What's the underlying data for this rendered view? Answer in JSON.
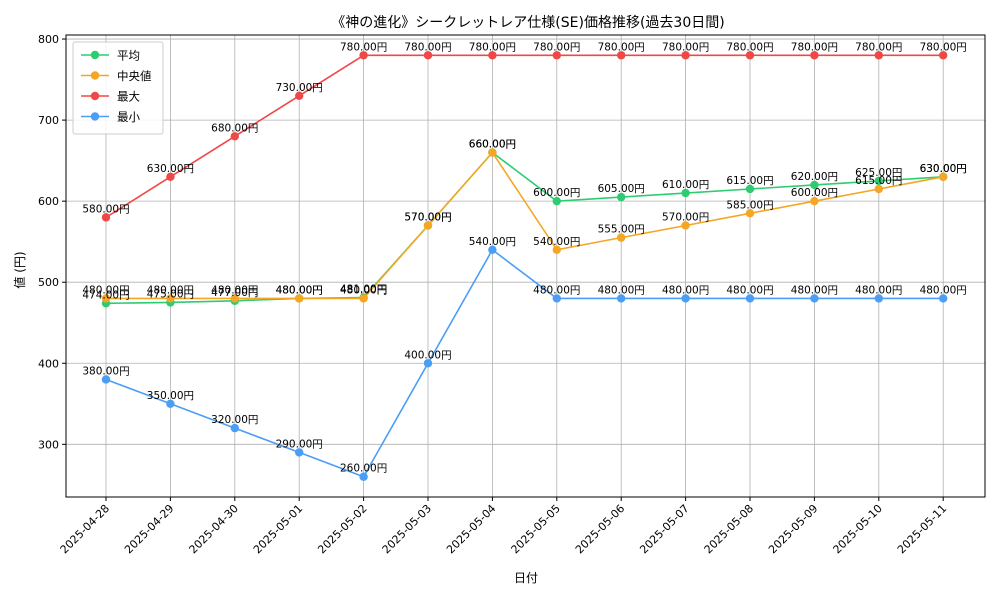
{
  "chart_data": {
    "type": "line",
    "title": "《神の進化》シークレットレア仕様(SE)価格推移(過去30日間)",
    "xlabel": "日付",
    "ylabel": "値 (円)",
    "ylim": [
      235,
      805
    ],
    "yticks": [
      300,
      400,
      500,
      600,
      700,
      800
    ],
    "grid": true,
    "legend_position": "top-left",
    "label_suffix": "円",
    "categories": [
      "2025-04-28",
      "2025-04-29",
      "2025-04-30",
      "2025-05-01",
      "2025-05-02",
      "2025-05-03",
      "2025-05-04",
      "2025-05-05",
      "2025-05-06",
      "2025-05-07",
      "2025-05-08",
      "2025-05-09",
      "2025-05-10",
      "2025-05-11"
    ],
    "series": [
      {
        "name": "平均",
        "color": "#2ecc71",
        "values": [
          474.0,
          475.0,
          477.0,
          480.0,
          481.0,
          570.0,
          660.0,
          600.0,
          605.0,
          610.0,
          615.0,
          620.0,
          625.0,
          630.0
        ]
      },
      {
        "name": "中央値",
        "color": "#f5a623",
        "values": [
          480.0,
          480.0,
          480.0,
          480.0,
          480.0,
          570.0,
          660.0,
          540.0,
          555.0,
          570.0,
          585.0,
          600.0,
          615.0,
          630.0
        ]
      },
      {
        "name": "最大",
        "color": "#f04747",
        "values": [
          580.0,
          630.0,
          680.0,
          730.0,
          780.0,
          780.0,
          780.0,
          780.0,
          780.0,
          780.0,
          780.0,
          780.0,
          780.0,
          780.0
        ]
      },
      {
        "name": "最小",
        "color": "#4a9ef5",
        "values": [
          380.0,
          350.0,
          320.0,
          290.0,
          260.0,
          400.0,
          540.0,
          480.0,
          480.0,
          480.0,
          480.0,
          480.0,
          480.0,
          480.0
        ]
      }
    ]
  }
}
